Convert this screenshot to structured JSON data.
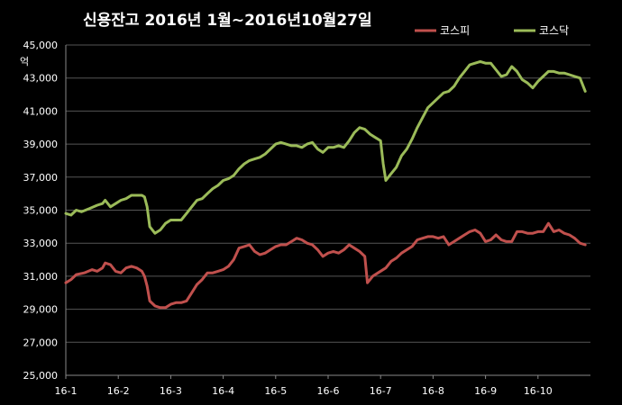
{
  "chart_data": {
    "type": "line",
    "title": "신용잔고  2016년 1월~2016년10월27일",
    "ylabel": "억",
    "xlabel": "",
    "ylim": [
      25000,
      45000
    ],
    "y_ticks": [
      "25,000",
      "27,000",
      "29,000",
      "31,000",
      "33,000",
      "35,000",
      "37,000",
      "39,000",
      "41,000",
      "43,000",
      "45,000"
    ],
    "x_ticks": [
      "16-1",
      "16-2",
      "16-3",
      "16-4",
      "16-5",
      "16-6",
      "16-7",
      "16-8",
      "16-9",
      "16-10"
    ],
    "x_range": [
      0,
      9.9
    ],
    "grid": true,
    "legend_position": "top-right",
    "series": [
      {
        "name": "코스피",
        "color": "#c0504d",
        "points": [
          [
            0,
            30600
          ],
          [
            0.1,
            30800
          ],
          [
            0.2,
            31100
          ],
          [
            0.35,
            31200
          ],
          [
            0.5,
            31400
          ],
          [
            0.6,
            31300
          ],
          [
            0.7,
            31500
          ],
          [
            0.75,
            31800
          ],
          [
            0.85,
            31700
          ],
          [
            0.95,
            31300
          ],
          [
            1.05,
            31200
          ],
          [
            1.15,
            31500
          ],
          [
            1.25,
            31600
          ],
          [
            1.35,
            31500
          ],
          [
            1.45,
            31300
          ],
          [
            1.5,
            31000
          ],
          [
            1.55,
            30400
          ],
          [
            1.6,
            29500
          ],
          [
            1.7,
            29200
          ],
          [
            1.8,
            29100
          ],
          [
            1.9,
            29100
          ],
          [
            2.0,
            29300
          ],
          [
            2.1,
            29400
          ],
          [
            2.2,
            29400
          ],
          [
            2.3,
            29500
          ],
          [
            2.4,
            30000
          ],
          [
            2.5,
            30500
          ],
          [
            2.6,
            30800
          ],
          [
            2.7,
            31200
          ],
          [
            2.8,
            31200
          ],
          [
            2.9,
            31300
          ],
          [
            3.0,
            31400
          ],
          [
            3.1,
            31600
          ],
          [
            3.2,
            32000
          ],
          [
            3.3,
            32700
          ],
          [
            3.4,
            32800
          ],
          [
            3.5,
            32900
          ],
          [
            3.6,
            32500
          ],
          [
            3.7,
            32300
          ],
          [
            3.8,
            32400
          ],
          [
            3.9,
            32600
          ],
          [
            4.0,
            32800
          ],
          [
            4.1,
            32900
          ],
          [
            4.2,
            32900
          ],
          [
            4.3,
            33100
          ],
          [
            4.4,
            33300
          ],
          [
            4.5,
            33200
          ],
          [
            4.6,
            33000
          ],
          [
            4.7,
            32900
          ],
          [
            4.8,
            32600
          ],
          [
            4.9,
            32200
          ],
          [
            5.0,
            32400
          ],
          [
            5.1,
            32500
          ],
          [
            5.2,
            32400
          ],
          [
            5.3,
            32600
          ],
          [
            5.4,
            32900
          ],
          [
            5.5,
            32700
          ],
          [
            5.6,
            32500
          ],
          [
            5.7,
            32200
          ],
          [
            5.75,
            30600
          ],
          [
            5.85,
            31000
          ],
          [
            5.95,
            31200
          ],
          [
            6.1,
            31500
          ],
          [
            6.2,
            31900
          ],
          [
            6.3,
            32100
          ],
          [
            6.4,
            32400
          ],
          [
            6.5,
            32600
          ],
          [
            6.6,
            32800
          ],
          [
            6.7,
            33200
          ],
          [
            6.8,
            33300
          ],
          [
            6.9,
            33400
          ],
          [
            7.0,
            33400
          ],
          [
            7.1,
            33300
          ],
          [
            7.2,
            33400
          ],
          [
            7.3,
            32900
          ],
          [
            7.4,
            33100
          ],
          [
            7.5,
            33300
          ],
          [
            7.6,
            33500
          ],
          [
            7.7,
            33700
          ],
          [
            7.8,
            33800
          ],
          [
            7.9,
            33600
          ],
          [
            8.0,
            33100
          ],
          [
            8.1,
            33200
          ],
          [
            8.2,
            33500
          ],
          [
            8.3,
            33200
          ],
          [
            8.4,
            33100
          ],
          [
            8.5,
            33100
          ],
          [
            8.6,
            33700
          ],
          [
            8.7,
            33700
          ],
          [
            8.8,
            33600
          ],
          [
            8.9,
            33600
          ],
          [
            9.0,
            33700
          ],
          [
            9.1,
            33700
          ],
          [
            9.2,
            34200
          ],
          [
            9.3,
            33700
          ],
          [
            9.4,
            33800
          ],
          [
            9.5,
            33600
          ],
          [
            9.6,
            33500
          ],
          [
            9.7,
            33300
          ],
          [
            9.8,
            33000
          ],
          [
            9.9,
            32900
          ]
        ]
      },
      {
        "name": "코스닥",
        "color": "#9bbb59",
        "points": [
          [
            0,
            34800
          ],
          [
            0.1,
            34700
          ],
          [
            0.2,
            35000
          ],
          [
            0.3,
            34900
          ],
          [
            0.45,
            35100
          ],
          [
            0.6,
            35300
          ],
          [
            0.7,
            35400
          ],
          [
            0.75,
            35600
          ],
          [
            0.85,
            35200
          ],
          [
            0.95,
            35400
          ],
          [
            1.05,
            35600
          ],
          [
            1.15,
            35700
          ],
          [
            1.25,
            35900
          ],
          [
            1.35,
            35900
          ],
          [
            1.45,
            35900
          ],
          [
            1.5,
            35800
          ],
          [
            1.55,
            35200
          ],
          [
            1.6,
            34000
          ],
          [
            1.7,
            33600
          ],
          [
            1.8,
            33800
          ],
          [
            1.9,
            34200
          ],
          [
            2.0,
            34400
          ],
          [
            2.1,
            34400
          ],
          [
            2.2,
            34400
          ],
          [
            2.3,
            34800
          ],
          [
            2.4,
            35200
          ],
          [
            2.5,
            35600
          ],
          [
            2.6,
            35700
          ],
          [
            2.7,
            36000
          ],
          [
            2.8,
            36300
          ],
          [
            2.9,
            36500
          ],
          [
            3.0,
            36800
          ],
          [
            3.1,
            36900
          ],
          [
            3.2,
            37100
          ],
          [
            3.3,
            37500
          ],
          [
            3.4,
            37800
          ],
          [
            3.5,
            38000
          ],
          [
            3.6,
            38100
          ],
          [
            3.7,
            38200
          ],
          [
            3.8,
            38400
          ],
          [
            3.9,
            38700
          ],
          [
            4.0,
            39000
          ],
          [
            4.1,
            39100
          ],
          [
            4.2,
            39000
          ],
          [
            4.3,
            38900
          ],
          [
            4.4,
            38900
          ],
          [
            4.5,
            38800
          ],
          [
            4.6,
            39000
          ],
          [
            4.7,
            39100
          ],
          [
            4.8,
            38700
          ],
          [
            4.9,
            38500
          ],
          [
            5.0,
            38800
          ],
          [
            5.1,
            38800
          ],
          [
            5.2,
            38900
          ],
          [
            5.3,
            38800
          ],
          [
            5.4,
            39200
          ],
          [
            5.5,
            39700
          ],
          [
            5.6,
            40000
          ],
          [
            5.7,
            39900
          ],
          [
            5.8,
            39600
          ],
          [
            5.9,
            39400
          ],
          [
            6.0,
            39200
          ],
          [
            6.05,
            37800
          ],
          [
            6.1,
            36800
          ],
          [
            6.2,
            37200
          ],
          [
            6.3,
            37600
          ],
          [
            6.4,
            38300
          ],
          [
            6.5,
            38700
          ],
          [
            6.6,
            39300
          ],
          [
            6.7,
            40000
          ],
          [
            6.8,
            40600
          ],
          [
            6.9,
            41200
          ],
          [
            7.0,
            41500
          ],
          [
            7.1,
            41800
          ],
          [
            7.2,
            42100
          ],
          [
            7.3,
            42200
          ],
          [
            7.4,
            42500
          ],
          [
            7.5,
            43000
          ],
          [
            7.6,
            43400
          ],
          [
            7.7,
            43800
          ],
          [
            7.8,
            43900
          ],
          [
            7.9,
            44000
          ],
          [
            8.0,
            43900
          ],
          [
            8.1,
            43900
          ],
          [
            8.2,
            43500
          ],
          [
            8.3,
            43100
          ],
          [
            8.4,
            43200
          ],
          [
            8.5,
            43700
          ],
          [
            8.6,
            43400
          ],
          [
            8.7,
            42900
          ],
          [
            8.8,
            42700
          ],
          [
            8.9,
            42400
          ],
          [
            9.0,
            42800
          ],
          [
            9.1,
            43100
          ],
          [
            9.2,
            43400
          ],
          [
            9.3,
            43400
          ],
          [
            9.4,
            43300
          ],
          [
            9.5,
            43300
          ],
          [
            9.6,
            43200
          ],
          [
            9.7,
            43100
          ],
          [
            9.8,
            43000
          ],
          [
            9.9,
            42200
          ]
        ]
      }
    ]
  }
}
